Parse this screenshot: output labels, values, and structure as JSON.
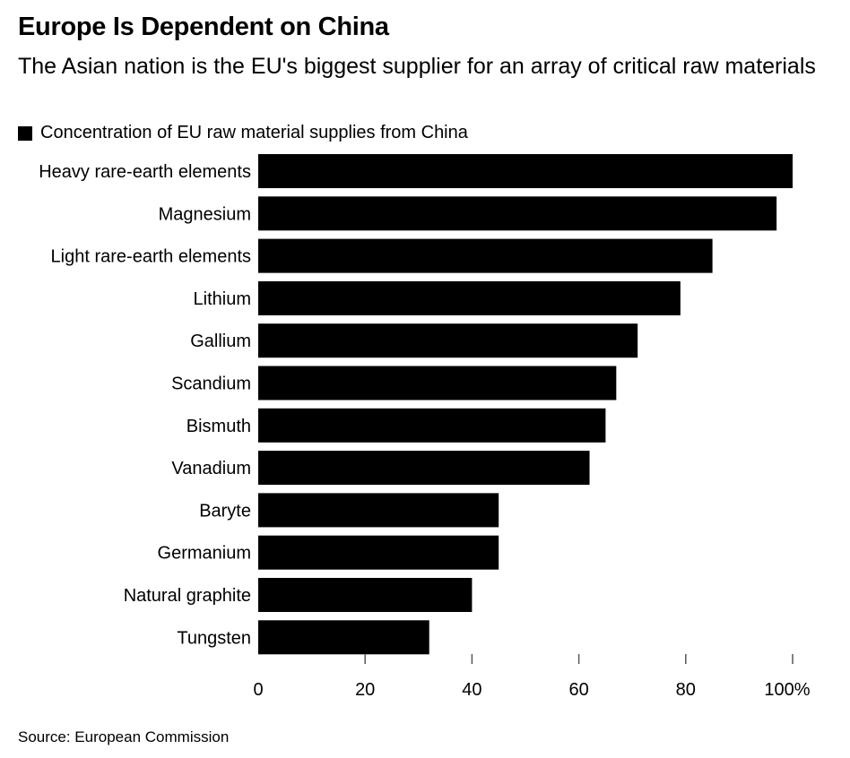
{
  "title": "Europe Is Dependent on China",
  "subtitle": "The Asian nation is the EU's biggest supplier for an array of critical raw materials",
  "source": "Source: European Commission",
  "chart_data": {
    "type": "bar",
    "orientation": "horizontal",
    "legend": [
      "Concentration of EU raw material supplies from China"
    ],
    "legend_placement": "top-left",
    "categories": [
      "Heavy rare-earth elements",
      "Magnesium",
      "Light rare-earth elements",
      "Lithium",
      "Gallium",
      "Scandium",
      "Bismuth",
      "Vanadium",
      "Baryte",
      "Germanium",
      "Natural graphite",
      "Tungsten"
    ],
    "values": [
      100,
      97,
      85,
      79,
      71,
      67,
      65,
      62,
      45,
      45,
      40,
      32
    ],
    "xlim": [
      0,
      100
    ],
    "xticks": [
      0,
      20,
      40,
      60,
      80,
      100
    ],
    "xtick_labels": [
      "0",
      "20",
      "40",
      "60",
      "80",
      "100%"
    ],
    "grid": false,
    "bar_color": "#000000"
  }
}
